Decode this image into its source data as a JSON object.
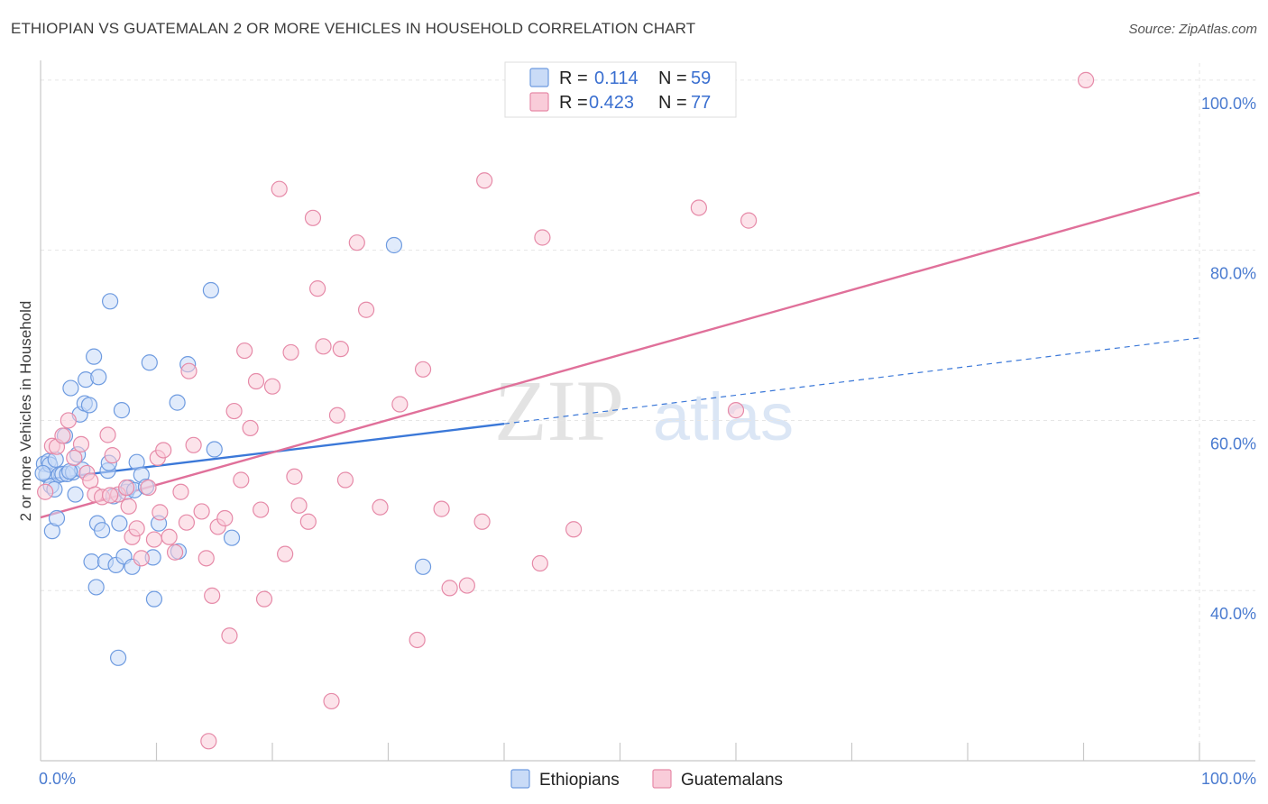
{
  "header": {
    "title": "ETHIOPIAN VS GUATEMALAN 2 OR MORE VEHICLES IN HOUSEHOLD CORRELATION CHART",
    "source": "Source: ZipAtlas.com"
  },
  "watermark": {
    "zip": "ZIP",
    "atlas": "atlas"
  },
  "legend": {
    "r_label": "R =",
    "n_label": "N =",
    "rows": [
      {
        "r": "0.114",
        "n": "59",
        "color": "#6e9be0",
        "fill": "#c9dbf7"
      },
      {
        "r": "0.423",
        "n": "77",
        "color": "#e68aa8",
        "fill": "#f9ccd9"
      }
    ]
  },
  "chart_data": {
    "type": "scatter",
    "title": "ETHIOPIAN VS GUATEMALAN 2 OR MORE VEHICLES IN HOUSEHOLD CORRELATION CHART",
    "xlabel": "",
    "ylabel": "2 or more Vehicles in Household",
    "xlim": [
      0,
      100
    ],
    "ylim": [
      20,
      102
    ],
    "x_tick_labels": [
      "0.0%",
      "100.0%"
    ],
    "y_ticks": [
      40,
      60,
      80,
      100
    ],
    "y_tick_labels": [
      "40.0%",
      "60.0%",
      "80.0%",
      "100.0%"
    ],
    "grid": true,
    "legend_position": "top-center",
    "series": [
      {
        "name": "Ethiopians",
        "color": "#3b78d8",
        "marker_fill": "#c9dbf7",
        "marker_stroke": "#6e9be0",
        "trend": {
          "x0": 0,
          "y0": 53.0,
          "x1": 40,
          "y1": 59.6,
          "dashed_to_x": 100,
          "dashed_to_y": 69.7
        },
        "points": [
          [
            0.3,
            54.9
          ],
          [
            0.5,
            53.6
          ],
          [
            0.7,
            55.2
          ],
          [
            0.8,
            54.8
          ],
          [
            0.9,
            52.3
          ],
          [
            1.0,
            47.0
          ],
          [
            1.2,
            51.9
          ],
          [
            1.4,
            48.5
          ],
          [
            1.6,
            53.6
          ],
          [
            1.9,
            53.7
          ],
          [
            2.1,
            58.2
          ],
          [
            2.3,
            53.7
          ],
          [
            2.6,
            63.8
          ],
          [
            2.8,
            53.9
          ],
          [
            3.0,
            51.3
          ],
          [
            3.2,
            56.0
          ],
          [
            3.4,
            60.7
          ],
          [
            3.6,
            54.2
          ],
          [
            3.8,
            62.0
          ],
          [
            3.9,
            64.8
          ],
          [
            4.2,
            61.8
          ],
          [
            4.4,
            43.4
          ],
          [
            4.6,
            67.5
          ],
          [
            4.8,
            40.4
          ],
          [
            4.9,
            47.9
          ],
          [
            5.0,
            65.1
          ],
          [
            5.3,
            47.1
          ],
          [
            5.6,
            43.4
          ],
          [
            5.8,
            54.1
          ],
          [
            5.9,
            55.0
          ],
          [
            6.0,
            74.0
          ],
          [
            6.3,
            51.1
          ],
          [
            6.5,
            43.0
          ],
          [
            6.7,
            32.1
          ],
          [
            6.8,
            47.9
          ],
          [
            7.0,
            61.2
          ],
          [
            7.2,
            44.0
          ],
          [
            7.4,
            51.6
          ],
          [
            7.6,
            52.1
          ],
          [
            7.9,
            42.8
          ],
          [
            8.1,
            51.8
          ],
          [
            8.3,
            55.1
          ],
          [
            8.7,
            53.6
          ],
          [
            9.1,
            52.2
          ],
          [
            9.4,
            66.8
          ],
          [
            9.7,
            43.9
          ],
          [
            9.8,
            39.0
          ],
          [
            10.2,
            47.9
          ],
          [
            11.8,
            62.1
          ],
          [
            11.9,
            44.6
          ],
          [
            12.7,
            66.6
          ],
          [
            14.7,
            75.3
          ],
          [
            15.0,
            56.6
          ],
          [
            16.5,
            46.2
          ],
          [
            30.5,
            80.6
          ],
          [
            33.0,
            42.8
          ],
          [
            0.2,
            53.8
          ],
          [
            1.3,
            55.4
          ],
          [
            2.5,
            54.0
          ]
        ]
      },
      {
        "name": "Guatemalans",
        "color": "#e0709a",
        "marker_fill": "#f9ccd9",
        "marker_stroke": "#e68aa8",
        "trend": {
          "x0": 0,
          "y0": 48.6,
          "x1": 100,
          "y1": 86.8
        },
        "points": [
          [
            0.4,
            51.6
          ],
          [
            1.0,
            57.0
          ],
          [
            1.4,
            56.9
          ],
          [
            1.9,
            58.2
          ],
          [
            2.4,
            60.0
          ],
          [
            2.9,
            55.6
          ],
          [
            3.5,
            57.2
          ],
          [
            4.0,
            53.8
          ],
          [
            4.3,
            52.9
          ],
          [
            4.7,
            51.3
          ],
          [
            5.3,
            51.0
          ],
          [
            5.8,
            58.3
          ],
          [
            6.2,
            55.9
          ],
          [
            6.7,
            51.3
          ],
          [
            7.4,
            52.1
          ],
          [
            7.6,
            49.9
          ],
          [
            7.9,
            46.3
          ],
          [
            8.3,
            47.3
          ],
          [
            8.7,
            43.8
          ],
          [
            9.3,
            52.1
          ],
          [
            10.1,
            55.6
          ],
          [
            10.3,
            49.2
          ],
          [
            10.6,
            56.5
          ],
          [
            11.1,
            46.3
          ],
          [
            11.6,
            44.5
          ],
          [
            12.1,
            51.6
          ],
          [
            12.6,
            48.0
          ],
          [
            12.8,
            65.8
          ],
          [
            13.2,
            57.1
          ],
          [
            13.9,
            49.3
          ],
          [
            14.3,
            43.8
          ],
          [
            14.8,
            39.4
          ],
          [
            15.3,
            47.5
          ],
          [
            15.9,
            48.5
          ],
          [
            16.3,
            34.7
          ],
          [
            16.7,
            61.1
          ],
          [
            17.3,
            53.0
          ],
          [
            17.6,
            68.2
          ],
          [
            18.1,
            59.1
          ],
          [
            18.6,
            64.6
          ],
          [
            19.0,
            49.5
          ],
          [
            19.3,
            39.0
          ],
          [
            20.0,
            64.0
          ],
          [
            20.6,
            87.2
          ],
          [
            21.1,
            44.3
          ],
          [
            21.6,
            68.0
          ],
          [
            21.9,
            53.4
          ],
          [
            22.3,
            50.0
          ],
          [
            23.1,
            48.1
          ],
          [
            23.5,
            83.8
          ],
          [
            23.9,
            75.5
          ],
          [
            24.4,
            68.7
          ],
          [
            25.1,
            27.0
          ],
          [
            25.6,
            60.6
          ],
          [
            25.9,
            68.4
          ],
          [
            26.3,
            53.0
          ],
          [
            27.3,
            80.9
          ],
          [
            28.1,
            73.0
          ],
          [
            29.3,
            49.8
          ],
          [
            31.0,
            61.9
          ],
          [
            32.5,
            34.2
          ],
          [
            33.0,
            66.0
          ],
          [
            34.6,
            49.6
          ],
          [
            35.3,
            40.3
          ],
          [
            36.8,
            40.6
          ],
          [
            38.1,
            48.1
          ],
          [
            38.3,
            88.2
          ],
          [
            43.1,
            43.2
          ],
          [
            43.3,
            81.5
          ],
          [
            46.0,
            47.2
          ],
          [
            56.8,
            85.0
          ],
          [
            60.0,
            61.2
          ],
          [
            61.1,
            83.5
          ],
          [
            90.2,
            100.0
          ],
          [
            14.5,
            22.3
          ],
          [
            9.8,
            46.0
          ],
          [
            6.0,
            51.2
          ]
        ]
      }
    ]
  }
}
